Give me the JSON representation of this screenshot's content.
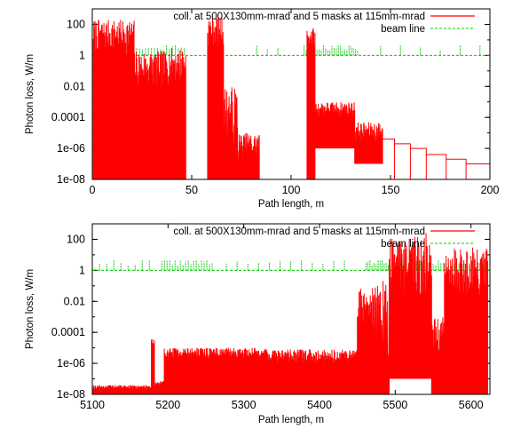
{
  "chart_data": [
    {
      "type": "line",
      "xlabel": "Path length, m",
      "ylabel": "Photon loss, W/m",
      "xlim": [
        0,
        200
      ],
      "ylim": [
        1e-08,
        1000
      ],
      "yscale": "log",
      "xticks": [
        0,
        50,
        100,
        150,
        200
      ],
      "yticks": [
        1e-08,
        1e-06,
        0.0001,
        0.01,
        1,
        100
      ],
      "ytick_labels": [
        "1e-08",
        "1e-06",
        "0.0001",
        "0.01",
        "1",
        "100"
      ],
      "legend_position": "top-right",
      "series": [
        {
          "name": "coll. at 500X130mm-mrad and 5 masks at 115mm-mrad",
          "color": "#ff0000",
          "style": "spiky",
          "segments": [
            {
              "x0": 0.5,
              "x1": 21,
              "min": 1e-08,
              "max_lo": 1,
              "max_hi": 200
            },
            {
              "x0": 21,
              "x1": 38,
              "min": 1e-08,
              "max_lo": 0.005,
              "max_hi": 2
            },
            {
              "x0": 38,
              "x1": 47,
              "min": 1e-08,
              "max_lo": 0.01,
              "max_hi": 3
            },
            {
              "x0": 58,
              "x1": 66,
              "min": 1e-08,
              "max_lo": 3,
              "max_hi": 300
            },
            {
              "x0": 66,
              "x1": 73,
              "min": 1e-08,
              "max_lo": 1e-06,
              "max_hi": 0.01
            },
            {
              "x0": 73,
              "x1": 84,
              "min": 1e-08,
              "max_lo": 1e-07,
              "max_hi": 1e-05
            },
            {
              "x0": 108,
              "x1": 112,
              "min": 1e-08,
              "max_lo": 3,
              "max_hi": 60
            },
            {
              "x0": 112,
              "x1": 132,
              "min": 1e-06,
              "max_lo": 0.0001,
              "max_hi": 0.001
            },
            {
              "x0": 132,
              "x1": 146,
              "min": 1e-07,
              "max_lo": 2e-06,
              "max_hi": 5e-05
            }
          ],
          "steps": [
            {
              "x": 146,
              "y": 4e-06
            },
            {
              "x": 152,
              "y": 2e-06
            },
            {
              "x": 160,
              "y": 1e-06
            },
            {
              "x": 168,
              "y": 4e-07
            },
            {
              "x": 178,
              "y": 2e-07
            },
            {
              "x": 188,
              "y": 1e-07
            },
            {
              "x": 200,
              "y": 1e-07
            }
          ]
        },
        {
          "name": "beam line",
          "color": "#00cc00",
          "level": 1,
          "tick_groups": [
            {
              "x0": 2,
              "x1": 47,
              "n": 30
            },
            {
              "x0": 58,
              "x1": 66,
              "n": 5
            },
            {
              "x0": 80,
              "x1": 96,
              "n": 3
            },
            {
              "x0": 106,
              "x1": 134,
              "n": 26
            },
            {
              "x0": 140,
              "x1": 200,
              "n": 6
            }
          ]
        }
      ]
    },
    {
      "type": "line",
      "xlabel": "Path length, m",
      "ylabel": "Photon loss, W/m",
      "xlim": [
        5100,
        5625
      ],
      "ylim": [
        1e-08,
        1000
      ],
      "yscale": "log",
      "xticks": [
        5100,
        5200,
        5300,
        5400,
        5500,
        5600
      ],
      "yticks": [
        1e-08,
        1e-06,
        0.0001,
        0.01,
        1,
        100
      ],
      "ytick_labels": [
        "1e-08",
        "1e-06",
        "0.0001",
        "0.01",
        "1",
        "100"
      ],
      "legend_position": "top-right",
      "series": [
        {
          "name": "coll. at 500X130mm-mrad and 5 masks at 115mm-mrad",
          "color": "#ff0000",
          "style": "spiky",
          "segments": [
            {
              "x0": 5100,
              "x1": 5178,
              "min": 1e-08,
              "max_lo": 2e-08,
              "max_hi": 4e-08
            },
            {
              "x0": 5178,
              "x1": 5182,
              "min": 1e-08,
              "max_lo": 1e-05,
              "max_hi": 5e-05
            },
            {
              "x0": 5182,
              "x1": 5195,
              "min": 1e-08,
              "max_lo": 2e-08,
              "max_hi": 8e-08
            },
            {
              "x0": 5195,
              "x1": 5260,
              "min": 1e-08,
              "max_lo": 2e-06,
              "max_hi": 1e-05
            },
            {
              "x0": 5260,
              "x1": 5330,
              "min": 1e-08,
              "max_lo": 2e-06,
              "max_hi": 1e-05
            },
            {
              "x0": 5330,
              "x1": 5450,
              "min": 1e-08,
              "max_lo": 1e-06,
              "max_hi": 8e-06
            },
            {
              "x0": 5450,
              "x1": 5470,
              "min": 1e-08,
              "max_lo": 0.0001,
              "max_hi": 0.1
            },
            {
              "x0": 5470,
              "x1": 5492,
              "min": 1e-08,
              "max_lo": 1e-08,
              "max_hi": 0.3
            },
            {
              "x0": 5492,
              "x1": 5548,
              "min": 1e-07,
              "max_lo": 0.01,
              "max_hi": 300
            },
            {
              "x0": 5548,
              "x1": 5565,
              "min": 1e-08,
              "max_lo": 1e-06,
              "max_hi": 0.001
            },
            {
              "x0": 5565,
              "x1": 5622,
              "min": 1e-08,
              "max_lo": 0.01,
              "max_hi": 30
            }
          ]
        },
        {
          "name": "beam line",
          "color": "#00cc00",
          "level": 1,
          "tick_groups": [
            {
              "x0": 5105,
              "x1": 5180,
              "n": 8
            },
            {
              "x0": 5190,
              "x1": 5260,
              "n": 20
            },
            {
              "x0": 5270,
              "x1": 5440,
              "n": 12
            },
            {
              "x0": 5460,
              "x1": 5540,
              "n": 30
            },
            {
              "x0": 5545,
              "x1": 5620,
              "n": 22
            }
          ]
        }
      ]
    }
  ]
}
